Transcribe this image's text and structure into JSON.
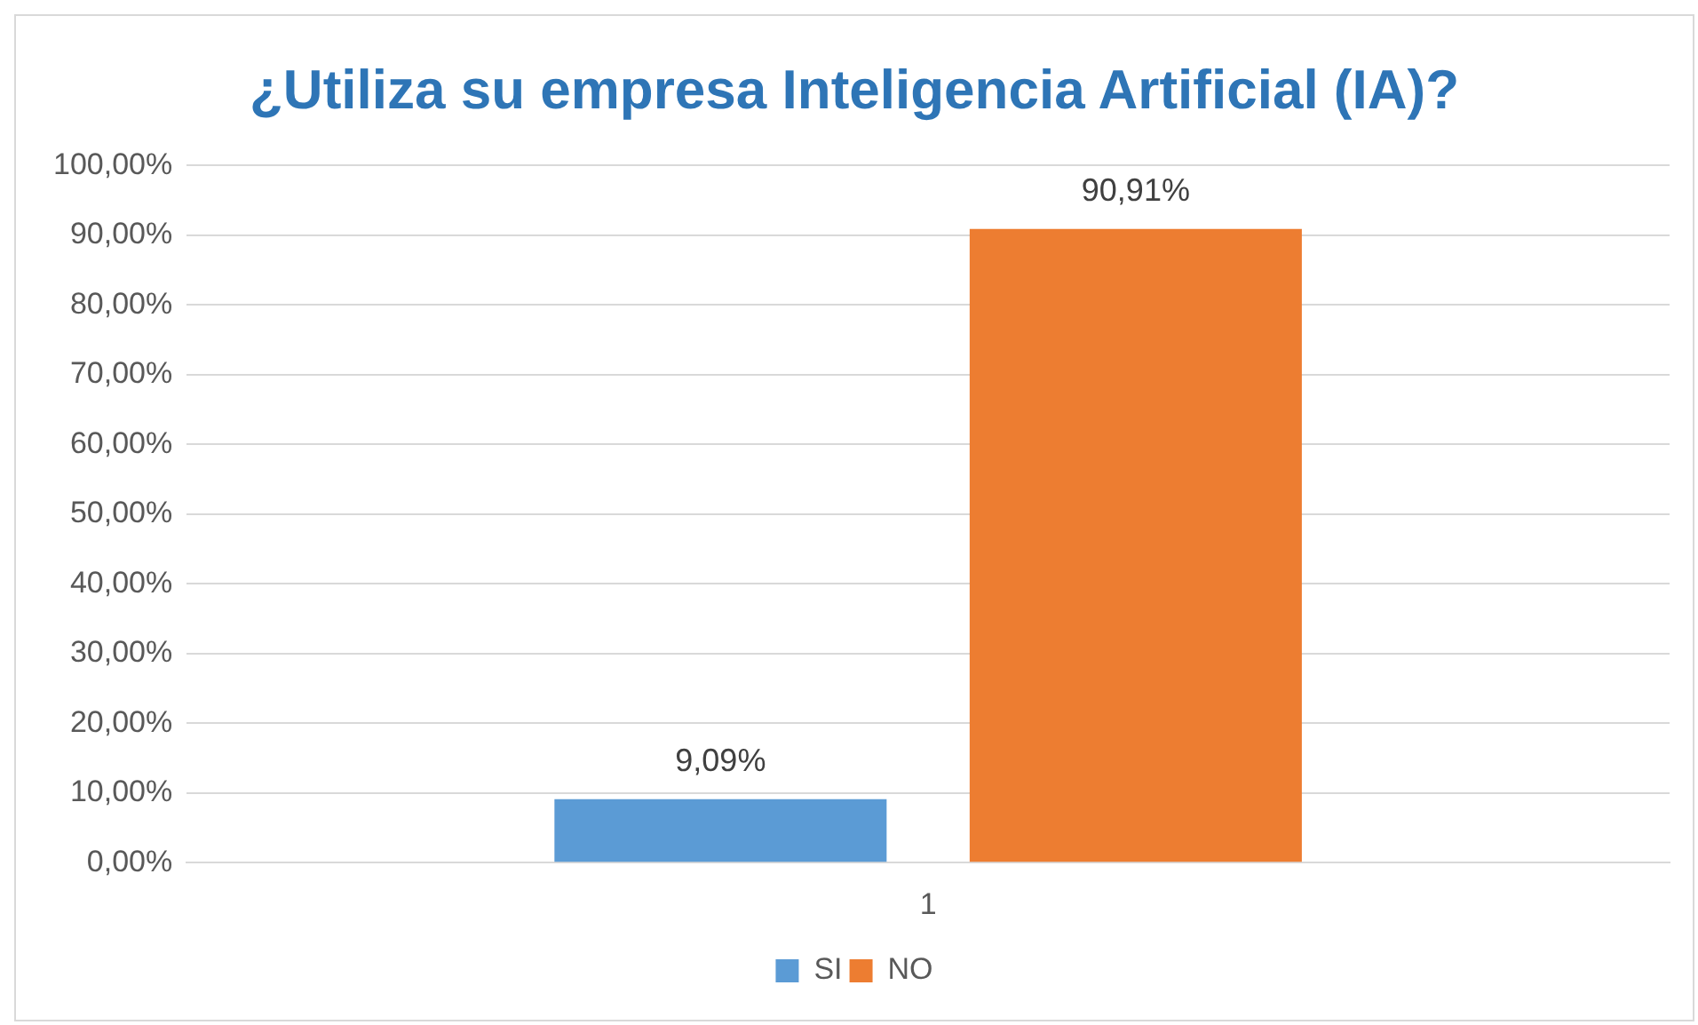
{
  "chart_data": {
    "type": "bar",
    "title": "¿Utiliza su empresa Inteligencia Artificial (IA)?",
    "categories": [
      "1"
    ],
    "series": [
      {
        "name": "SI",
        "color": "#5b9bd5",
        "values": [
          9.09
        ],
        "value_labels": [
          "9,09%"
        ]
      },
      {
        "name": "NO",
        "color": "#ed7d31",
        "values": [
          90.91
        ],
        "value_labels": [
          "90,91%"
        ]
      }
    ],
    "ylim": [
      0,
      100
    ],
    "yticks": [
      {
        "value": 0,
        "label": "0,00%"
      },
      {
        "value": 10,
        "label": "10,00%"
      },
      {
        "value": 20,
        "label": "20,00%"
      },
      {
        "value": 30,
        "label": "30,00%"
      },
      {
        "value": 40,
        "label": "40,00%"
      },
      {
        "value": 50,
        "label": "50,00%"
      },
      {
        "value": 60,
        "label": "60,00%"
      },
      {
        "value": 70,
        "label": "70,00%"
      },
      {
        "value": 80,
        "label": "80,00%"
      },
      {
        "value": 90,
        "label": "90,00%"
      },
      {
        "value": 100,
        "label": "100,00%"
      }
    ],
    "grid": "y",
    "legend": "bottom"
  }
}
